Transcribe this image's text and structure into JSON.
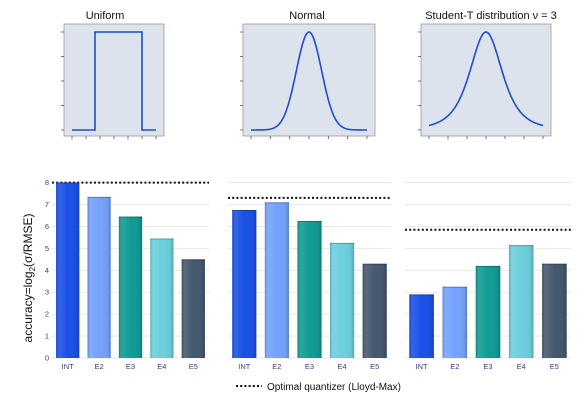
{
  "colors": {
    "INT": "#1a50e6",
    "E2": "#74a2fb",
    "E3": "#109c94",
    "E4": "#6ccfdc",
    "E5": "#44586f",
    "dist_line": "#1e4fc8",
    "dist_bg": "#dde3ec"
  },
  "ylabel": "accuracy=log",
  "ylabel_sub": "2",
  "ylabel_tail": "(σ/RMSE)",
  "legend": {
    "label": "Optimal quantizer (Lloyd-Max)"
  },
  "chart_data": [
    {
      "type": "line",
      "title": "Uniform",
      "distribution": "uniform"
    },
    {
      "type": "line",
      "title": "Normal",
      "distribution": "normal"
    },
    {
      "type": "line",
      "title": "Student-T distribution ν = 3",
      "distribution": "student-t",
      "nu": 3
    },
    {
      "type": "bar",
      "categories": [
        "INT",
        "E2",
        "E3",
        "E4",
        "E5"
      ],
      "values": [
        8.0,
        7.35,
        6.45,
        5.45,
        4.5
      ],
      "optimal": 8.0,
      "ylim": [
        0,
        8.3
      ],
      "yticks": [
        "0",
        "1",
        "2",
        "3",
        "4",
        "5",
        "6",
        "7",
        "8"
      ],
      "grid": true
    },
    {
      "type": "bar",
      "categories": [
        "INT",
        "E2",
        "E3",
        "E4",
        "E5"
      ],
      "values": [
        6.75,
        7.1,
        6.25,
        5.25,
        4.3
      ],
      "optimal": 7.3,
      "ylim": [
        0,
        8.3
      ],
      "grid": true
    },
    {
      "type": "bar",
      "categories": [
        "INT",
        "E2",
        "E3",
        "E4",
        "E5"
      ],
      "values": [
        2.9,
        3.25,
        4.2,
        5.15,
        4.3
      ],
      "optimal": 5.85,
      "ylim": [
        0,
        8.3
      ],
      "grid": true
    }
  ]
}
